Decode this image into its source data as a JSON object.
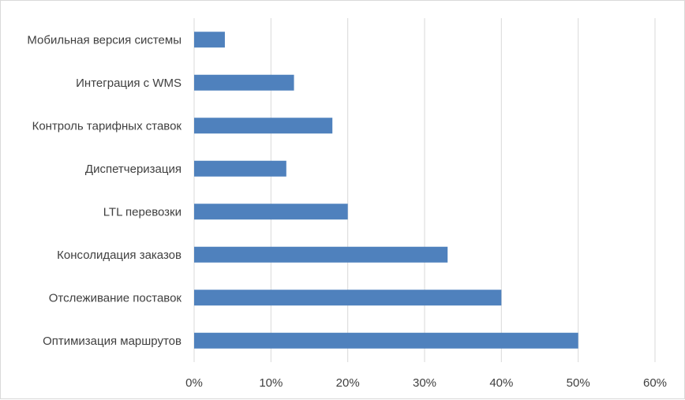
{
  "chart_data": {
    "type": "bar",
    "orientation": "horizontal",
    "categories": [
      "Мобильная версия системы",
      "Интеграция с WMS",
      "Контроль тарифных ставок",
      "Диспетчеризация",
      "LTL перевозки",
      "Консолидация заказов",
      "Отслеживание поставок",
      "Оптимизация маршрутов"
    ],
    "values": [
      4,
      13,
      18,
      12,
      20,
      33,
      40,
      50
    ],
    "x_ticks": [
      "0%",
      "10%",
      "20%",
      "30%",
      "40%",
      "50%",
      "60%"
    ],
    "xlim": [
      0,
      60
    ],
    "grid": true,
    "bar_color": "#4f81bd",
    "grid_color": "#d9d9d9"
  }
}
